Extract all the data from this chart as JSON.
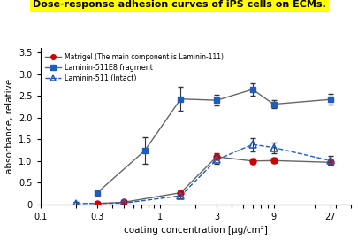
{
  "title": "Dose-response adhesion curves of iPS cells on ECMs.",
  "title_bg": "#FFFF00",
  "xlabel": "coating concentration [μg/cm²]",
  "ylabel": "absorbance, relative",
  "ylim": [
    0,
    3.6
  ],
  "yticks": [
    0,
    0.5,
    1.0,
    1.5,
    2.0,
    2.5,
    3.0,
    3.5
  ],
  "xticks": [
    0.1,
    0.3,
    1,
    3,
    9,
    27
  ],
  "xtick_labels": [
    "0.1",
    "0.3",
    "1",
    "3",
    "9",
    "27"
  ],
  "matrigel": {
    "label_main": "Matrigel",
    "label_sub": " (The main component is Laminin-111)",
    "color": "#cc0000",
    "line_color": "#888888",
    "marker": "o",
    "linestyle": "-",
    "x": [
      0.3,
      0.5,
      1.5,
      3.0,
      6.0,
      9.0,
      27.0
    ],
    "y": [
      0.02,
      0.05,
      0.27,
      1.1,
      1.0,
      1.01,
      0.97
    ],
    "yerr": [
      0.03,
      0.04,
      0.05,
      0.07,
      0.06,
      0.06,
      0.06
    ]
  },
  "lam511e8": {
    "label": "Laminin-511E8 fragment",
    "color": "#1e5dbd",
    "line_color": "#555555",
    "marker": "s",
    "linestyle": "-",
    "x": [
      0.3,
      0.75,
      1.5,
      3.0,
      6.0,
      9.0,
      27.0
    ],
    "y": [
      0.27,
      1.24,
      2.43,
      2.4,
      2.65,
      2.31,
      2.42
    ],
    "yerr": [
      0.06,
      0.3,
      0.28,
      0.12,
      0.15,
      0.1,
      0.12
    ]
  },
  "lam511": {
    "label": "Laminin-511 (Intact)",
    "color": "#1e5dbd",
    "line_color": "#1e5dbd",
    "marker": "^",
    "linestyle": "--",
    "x": [
      0.2,
      0.5,
      1.5,
      3.0,
      6.0,
      9.0,
      27.0
    ],
    "y": [
      0.02,
      0.03,
      0.2,
      1.03,
      1.38,
      1.31,
      1.01
    ],
    "yerr": [
      0.03,
      0.03,
      0.06,
      0.1,
      0.15,
      0.12,
      0.1
    ]
  },
  "bg_color": "#ffffff",
  "line_gray": "#666666"
}
